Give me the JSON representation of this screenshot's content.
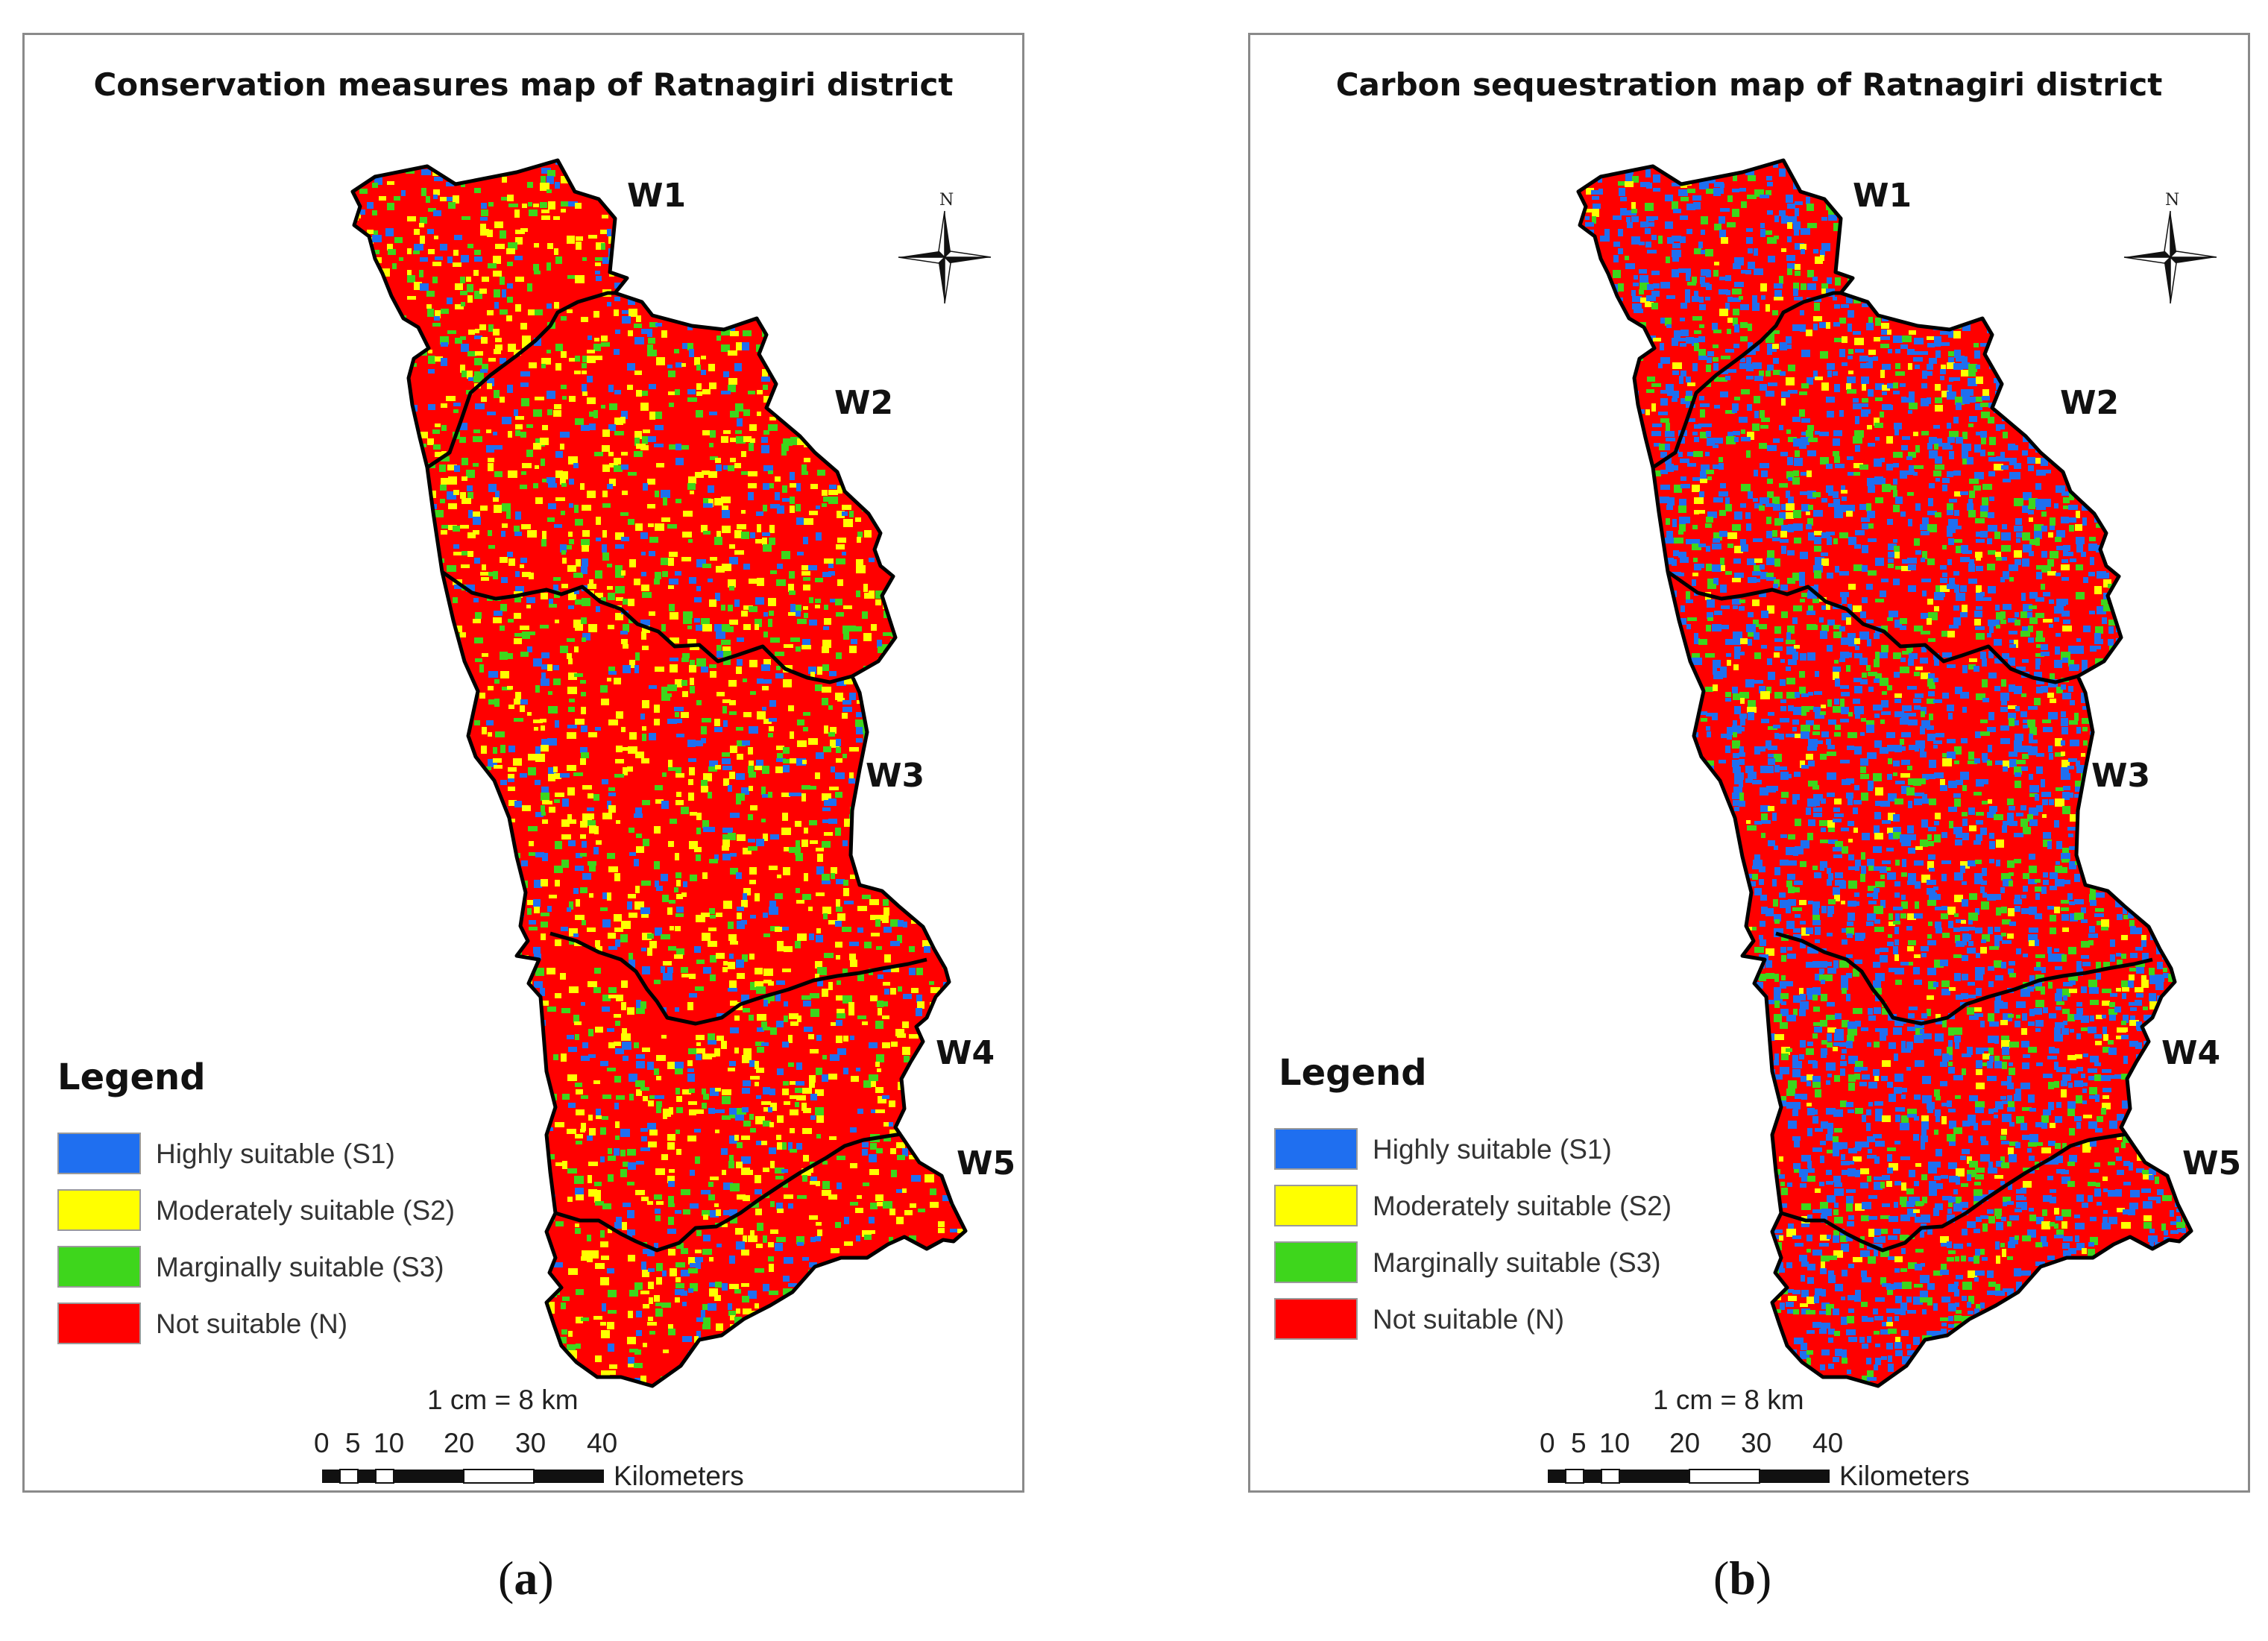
{
  "colors": {
    "S1": "#1f6ff0",
    "S2": "#ffff00",
    "S3": "#3ed61c",
    "N": "#ff0000",
    "boundary": "#000000"
  },
  "panels": [
    {
      "id": "a",
      "title": "Conservation measures map of Ratnagiri district",
      "caption_letter": "a",
      "mix": {
        "S1": 0.06,
        "S2": 0.1,
        "S3": 0.08,
        "N": 0.76
      },
      "north_label": "N",
      "watersheds": [
        "W1",
        "W2",
        "W3",
        "W4",
        "W5"
      ],
      "legend": {
        "title": "Legend",
        "items": [
          {
            "key": "S1",
            "label": "Highly suitable (S1)"
          },
          {
            "key": "S2",
            "label": "Moderately suitable (S2)"
          },
          {
            "key": "S3",
            "label": "Marginally suitable (S3)"
          },
          {
            "key": "N",
            "label": "Not suitable (N)"
          }
        ]
      },
      "scale": {
        "ratio": "1 cm = 8 km",
        "ticks": [
          "0",
          "5",
          "10",
          "20",
          "30",
          "40"
        ],
        "unit": "Kilometers"
      }
    },
    {
      "id": "b",
      "title": "Carbon sequestration map of Ratnagiri district",
      "caption_letter": "b",
      "mix": {
        "S1": 0.24,
        "S2": 0.03,
        "S3": 0.09,
        "N": 0.64
      },
      "north_label": "N",
      "watersheds": [
        "W1",
        "W2",
        "W3",
        "W4",
        "W5"
      ],
      "legend": {
        "title": "Legend",
        "items": [
          {
            "key": "S1",
            "label": "Highly suitable (S1)"
          },
          {
            "key": "S2",
            "label": "Moderately suitable (S2)"
          },
          {
            "key": "S3",
            "label": "Marginally suitable (S3)"
          },
          {
            "key": "N",
            "label": "Not suitable (N)"
          }
        ]
      },
      "scale": {
        "ratio": "1 cm = 8 km",
        "ticks": [
          "0",
          "5",
          "10",
          "20",
          "30",
          "40"
        ],
        "unit": "Kilometers"
      }
    }
  ]
}
